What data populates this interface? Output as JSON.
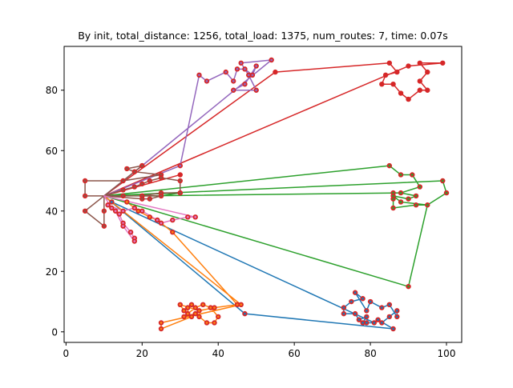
{
  "chart_data": {
    "type": "line",
    "title": "By init, total_distance: 1256, total_load: 1375, num_routes: 7, time: 0.07s",
    "xlabel": "",
    "ylabel": "",
    "xlim": [
      -0.5,
      104
    ],
    "ylim": [
      -3.5,
      94.5
    ],
    "xticks": [
      0,
      20,
      40,
      60,
      80,
      100
    ],
    "yticks": [
      0,
      20,
      40,
      60,
      80
    ],
    "xtick_labels": [
      "0",
      "20",
      "40",
      "60",
      "80",
      "100"
    ],
    "ytick_labels": [
      "0",
      "20",
      "40",
      "60",
      "80"
    ],
    "grid": false,
    "depot": [
      10,
      45
    ],
    "series": [
      {
        "color": "#1f77b4",
        "points": [
          [
            10,
            45
          ],
          [
            47,
            6
          ],
          [
            86,
            1
          ],
          [
            82,
            4
          ],
          [
            83,
            3
          ],
          [
            85,
            5
          ],
          [
            87,
            7
          ],
          [
            87,
            5
          ],
          [
            85,
            9
          ],
          [
            83,
            8
          ],
          [
            80,
            10
          ],
          [
            79,
            7
          ],
          [
            76,
            13
          ],
          [
            78,
            11
          ],
          [
            75,
            10
          ],
          [
            73,
            8
          ],
          [
            73,
            6
          ],
          [
            76,
            6
          ],
          [
            77,
            4
          ],
          [
            79,
            5
          ],
          [
            78,
            3
          ],
          [
            79,
            3
          ],
          [
            81,
            3
          ],
          [
            12,
            43
          ],
          [
            10,
            45
          ]
        ]
      },
      {
        "color": "#ff7f0e",
        "points": [
          [
            10,
            45
          ],
          [
            46,
            9
          ],
          [
            25,
            3
          ],
          [
            25,
            1
          ],
          [
            33,
            5
          ],
          [
            31,
            5
          ],
          [
            34,
            6
          ],
          [
            35,
            5
          ],
          [
            37,
            3
          ],
          [
            39,
            3
          ],
          [
            40,
            5
          ],
          [
            38,
            8
          ],
          [
            36,
            9
          ],
          [
            34,
            8
          ],
          [
            32,
            6
          ],
          [
            32,
            8
          ],
          [
            33,
            9
          ],
          [
            31,
            7
          ],
          [
            30,
            9
          ],
          [
            35,
            7
          ],
          [
            39,
            8
          ],
          [
            45,
            9
          ],
          [
            28,
            33
          ],
          [
            24,
            37
          ],
          [
            22,
            38
          ],
          [
            19,
            40
          ],
          [
            16,
            43
          ],
          [
            10,
            45
          ]
        ]
      },
      {
        "color": "#2ca02c",
        "points": [
          [
            10,
            45
          ],
          [
            99,
            50
          ],
          [
            100,
            46
          ],
          [
            95,
            42
          ],
          [
            90,
            15
          ],
          [
            10,
            45
          ],
          [
            85,
            55
          ],
          [
            88,
            52
          ],
          [
            91,
            52
          ],
          [
            93,
            48
          ],
          [
            88,
            46
          ],
          [
            86,
            46
          ],
          [
            86,
            44
          ],
          [
            86,
            41
          ],
          [
            92,
            42
          ],
          [
            95,
            42
          ],
          [
            88,
            43
          ],
          [
            86,
            45
          ],
          [
            90,
            44
          ],
          [
            92,
            45
          ],
          [
            88,
            46
          ],
          [
            20,
            45
          ],
          [
            25,
            45
          ],
          [
            30,
            46
          ],
          [
            10,
            45
          ]
        ]
      },
      {
        "color": "#d62728",
        "points": [
          [
            10,
            45
          ],
          [
            55,
            86
          ],
          [
            85,
            89
          ],
          [
            87,
            86
          ],
          [
            84,
            85
          ],
          [
            83,
            82
          ],
          [
            86,
            82
          ],
          [
            88,
            79
          ],
          [
            90,
            77
          ],
          [
            93,
            80
          ],
          [
            95,
            80
          ],
          [
            93,
            83
          ],
          [
            95,
            86
          ],
          [
            93,
            89
          ],
          [
            99,
            89
          ],
          [
            90,
            88
          ],
          [
            10,
            45
          ],
          [
            30,
            52
          ],
          [
            10,
            45
          ]
        ]
      },
      {
        "color": "#9467bd",
        "points": [
          [
            10,
            45
          ],
          [
            30,
            55
          ],
          [
            35,
            85
          ],
          [
            37,
            83
          ],
          [
            42,
            86
          ],
          [
            44,
            83
          ],
          [
            45,
            87
          ],
          [
            47,
            87
          ],
          [
            49,
            85
          ],
          [
            50,
            88
          ],
          [
            47,
            82
          ],
          [
            44,
            80
          ],
          [
            50,
            80
          ],
          [
            48,
            85
          ],
          [
            46,
            89
          ],
          [
            54,
            90
          ],
          [
            20,
            55
          ],
          [
            10,
            45
          ]
        ]
      },
      {
        "color": "#8c564b",
        "points": [
          [
            10,
            45
          ],
          [
            5,
            45
          ],
          [
            5,
            50
          ],
          [
            15,
            50
          ],
          [
            25,
            52
          ],
          [
            18,
            53
          ],
          [
            16,
            54
          ],
          [
            20,
            55
          ],
          [
            10,
            45
          ],
          [
            10,
            40
          ],
          [
            10,
            35
          ],
          [
            5,
            40
          ],
          [
            10,
            45
          ],
          [
            15,
            47
          ],
          [
            18,
            48
          ],
          [
            20,
            49
          ],
          [
            22,
            50
          ],
          [
            25,
            51
          ],
          [
            30,
            50
          ],
          [
            30,
            46
          ],
          [
            25,
            46
          ],
          [
            20,
            45
          ],
          [
            15,
            45
          ],
          [
            10,
            45
          ],
          [
            20,
            44
          ],
          [
            22,
            44
          ],
          [
            25,
            45
          ],
          [
            10,
            45
          ]
        ]
      },
      {
        "color": "#e377c2",
        "points": [
          [
            10,
            45
          ],
          [
            12,
            41
          ],
          [
            14,
            39
          ],
          [
            15,
            36
          ],
          [
            17,
            33
          ],
          [
            18,
            31
          ],
          [
            18,
            30
          ],
          [
            15,
            35
          ],
          [
            13,
            40
          ],
          [
            11,
            42
          ],
          [
            15,
            40
          ],
          [
            18,
            41
          ],
          [
            20,
            40
          ],
          [
            24,
            37
          ],
          [
            25,
            36
          ],
          [
            28,
            37
          ],
          [
            32,
            38
          ],
          [
            34,
            38
          ],
          [
            10,
            45
          ]
        ]
      }
    ]
  }
}
